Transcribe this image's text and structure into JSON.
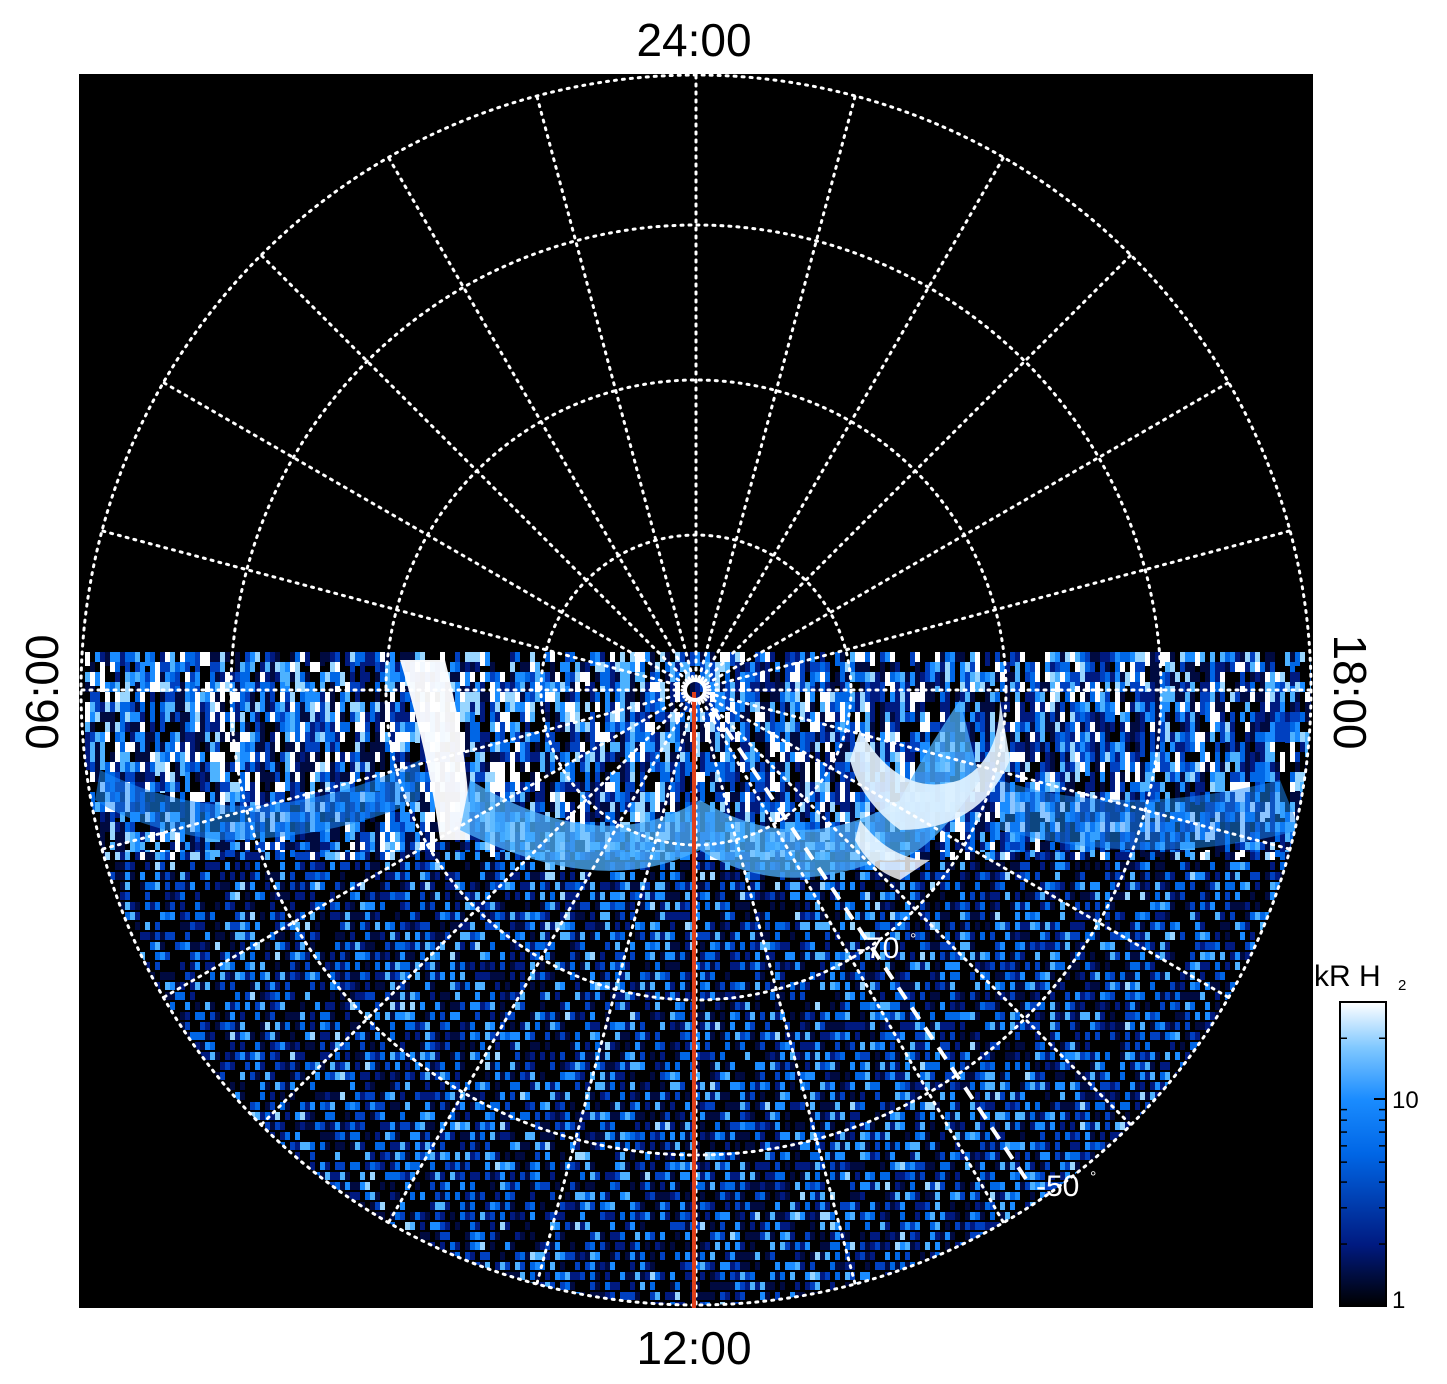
{
  "projection": {
    "labels": {
      "top": "24:00",
      "bottom": "12:00",
      "left": "06:00",
      "right": "18:00"
    },
    "latitude_labels": {
      "inner": "-70",
      "outer": "-50",
      "degree_symbol": "°"
    },
    "colors": {
      "background": "#000000",
      "grid": "#ffffff",
      "meridian_line": "#e0401a",
      "emission_dark": "#000a40",
      "emission_mid": "#1a8cff",
      "emission_bright": "#ffffff"
    },
    "emission_hemisphere": "noon side (below 06:00–18:00 line)"
  },
  "colorbar": {
    "title": "kR H",
    "title_subscript": "2",
    "scale": "log",
    "min": 1,
    "max": 30,
    "ticks": [
      {
        "value": 1,
        "label": "1"
      },
      {
        "value": 10,
        "label": "10"
      }
    ],
    "colors": [
      "#000000",
      "#001a80",
      "#0066e6",
      "#33a3ff",
      "#b3e0ff",
      "#ffffff"
    ]
  }
}
